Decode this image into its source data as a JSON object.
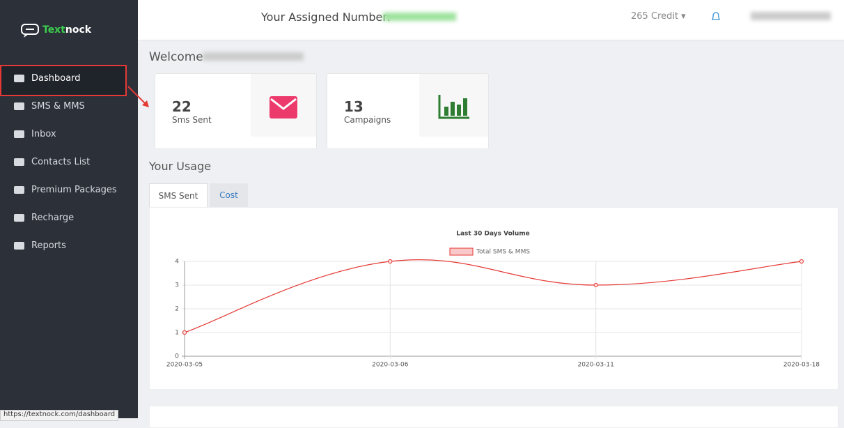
{
  "sidebar": {
    "brand": [
      "Text",
      "nock"
    ],
    "menu": [
      "Dashboard",
      "SMS & MMS",
      "Inbox",
      "Contacts List",
      "Premium Packages",
      "Recharge",
      "Reports"
    ]
  },
  "header": {
    "assigned_label": "Your Assigned Number:",
    "credit": "265 Credit"
  },
  "welcome": "Welcome",
  "stats": [
    {
      "value": 22,
      "label": "Sms Sent"
    },
    {
      "value": 13,
      "label": "Campaigns"
    }
  ],
  "usage_title": "Your Usage",
  "tabs": [
    "SMS Sent",
    "Cost"
  ],
  "chart_data": {
    "type": "line",
    "title": "Last 30 Days Volume",
    "categories": [
      "2020-03-05",
      "2020-03-06",
      "2020-03-11",
      "2020-03-18"
    ],
    "series": [
      {
        "name": "Total SMS & MMS",
        "color": "#e53935",
        "values": [
          1,
          4,
          3,
          4
        ]
      }
    ],
    "ylim": [
      0,
      4
    ],
    "yticks": [
      0,
      1,
      2,
      3,
      4
    ],
    "grid": true
  },
  "status_url": "https://textnock.com/dashboard"
}
